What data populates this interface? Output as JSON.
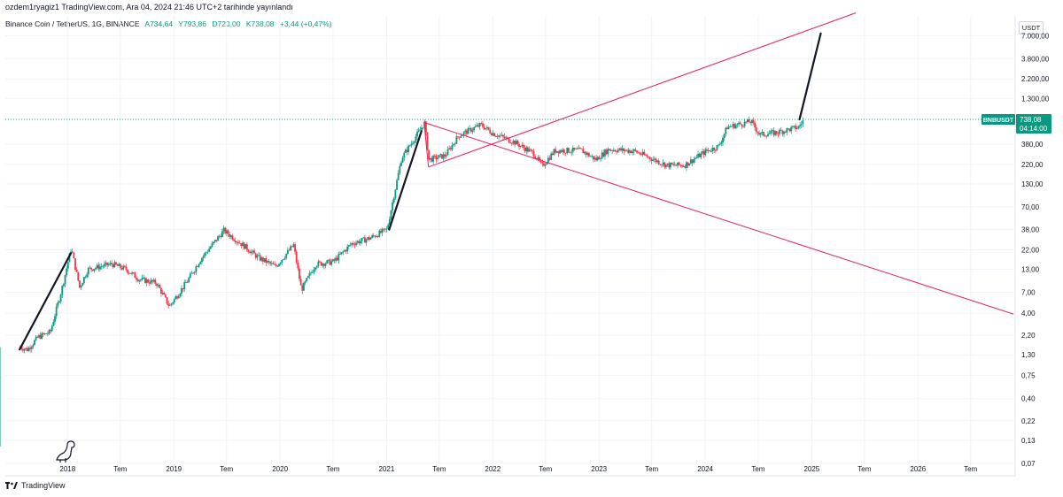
{
  "publish_note": "ozdem1ryagiz1 TradingView.com, Ara 04, 2024 21:46 UTC+2 tarihinde yayınlandı",
  "header": {
    "title": "Binance Coin / TetherUS, 1G, BINANCE",
    "open": "A734,64",
    "high": "Y793,86",
    "low": "D720,00",
    "close": "K738,08",
    "change": "+3,44 (+0,47%)"
  },
  "currency_badge": "USDT",
  "last_price": {
    "symbol": "BNBUSDT",
    "value": "738,08",
    "countdown": "04:14:00"
  },
  "brand": "TradingView",
  "colors": {
    "up": "#089981",
    "down": "#f23645",
    "trendline": "#e91e63",
    "projection": "#131722",
    "price_line": "#089981"
  },
  "chart_data": {
    "type": "candlestick",
    "y_scale": "log",
    "ylim": [
      0.05,
      12000
    ],
    "y_ticks": [
      {
        "value": 7000,
        "label": "7.000,00"
      },
      {
        "value": 3800,
        "label": "3.800,00"
      },
      {
        "value": 2200,
        "label": "2.200,00"
      },
      {
        "value": 1300,
        "label": "1.300,00"
      },
      {
        "value": 380,
        "label": "380,00"
      },
      {
        "value": 220,
        "label": "220,00"
      },
      {
        "value": 130,
        "label": "130,00"
      },
      {
        "value": 70,
        "label": "70,00"
      },
      {
        "value": 38,
        "label": "38,00"
      },
      {
        "value": 22,
        "label": "22,00"
      },
      {
        "value": 13,
        "label": "13,00"
      },
      {
        "value": 7,
        "label": "7,00"
      },
      {
        "value": 4,
        "label": "4,00"
      },
      {
        "value": 2.2,
        "label": "2,20"
      },
      {
        "value": 1.3,
        "label": "1,30"
      },
      {
        "value": 0.75,
        "label": "0,75"
      },
      {
        "value": 0.4,
        "label": "0,40"
      },
      {
        "value": 0.22,
        "label": "0,22"
      },
      {
        "value": 0.13,
        "label": "0,13"
      },
      {
        "value": 0.07,
        "label": "0,07"
      }
    ],
    "x_ticks": [
      {
        "date": "2018-01-01",
        "label": "2018"
      },
      {
        "date": "2018-07-01",
        "label": "Tem"
      },
      {
        "date": "2019-01-01",
        "label": "2019"
      },
      {
        "date": "2019-07-01",
        "label": "Tem"
      },
      {
        "date": "2020-01-01",
        "label": "2020"
      },
      {
        "date": "2020-07-01",
        "label": "Tem"
      },
      {
        "date": "2021-01-01",
        "label": "2021"
      },
      {
        "date": "2021-07-01",
        "label": "Tem"
      },
      {
        "date": "2022-01-01",
        "label": "2022"
      },
      {
        "date": "2022-07-01",
        "label": "Tem"
      },
      {
        "date": "2023-01-01",
        "label": "2023"
      },
      {
        "date": "2023-07-01",
        "label": "Tem"
      },
      {
        "date": "2024-01-01",
        "label": "2024"
      },
      {
        "date": "2024-07-01",
        "label": "Tem"
      },
      {
        "date": "2025-01-01",
        "label": "2025"
      },
      {
        "date": "2025-07-01",
        "label": "Tem"
      },
      {
        "date": "2026-01-01",
        "label": "2026"
      },
      {
        "date": "2026-07-01",
        "label": "Tem"
      }
    ],
    "xlim": [
      "2017-06-01",
      "2026-12-01"
    ],
    "price_series": [
      [
        "2017-07-14",
        0.11
      ],
      [
        "2017-07-20",
        1.6
      ],
      [
        "2017-08-15",
        1.5
      ],
      [
        "2017-09-20",
        2.1
      ],
      [
        "2017-11-01",
        2.4
      ],
      [
        "2017-12-10",
        7.5
      ],
      [
        "2018-01-12",
        23
      ],
      [
        "2018-02-10",
        8
      ],
      [
        "2018-03-10",
        13
      ],
      [
        "2018-04-20",
        14
      ],
      [
        "2018-06-01",
        15
      ],
      [
        "2018-07-20",
        13
      ],
      [
        "2018-09-01",
        10
      ],
      [
        "2018-11-01",
        9
      ],
      [
        "2018-12-15",
        4.8
      ],
      [
        "2019-02-15",
        9.5
      ],
      [
        "2019-04-01",
        17
      ],
      [
        "2019-06-20",
        37
      ],
      [
        "2019-07-15",
        32
      ],
      [
        "2019-09-01",
        24
      ],
      [
        "2019-10-15",
        18
      ],
      [
        "2019-12-15",
        14
      ],
      [
        "2020-02-15",
        25
      ],
      [
        "2020-03-13",
        7.5
      ],
      [
        "2020-05-01",
        15
      ],
      [
        "2020-07-01",
        16
      ],
      [
        "2020-09-01",
        26
      ],
      [
        "2020-11-01",
        30
      ],
      [
        "2021-01-01",
        38
      ],
      [
        "2021-02-20",
        260
      ],
      [
        "2021-05-10",
        670
      ],
      [
        "2021-05-25",
        250
      ],
      [
        "2021-07-20",
        280
      ],
      [
        "2021-09-05",
        480
      ],
      [
        "2021-11-20",
        640
      ],
      [
        "2021-12-30",
        510
      ],
      [
        "2022-03-15",
        400
      ],
      [
        "2022-05-20",
        295
      ],
      [
        "2022-06-18",
        210
      ],
      [
        "2022-08-01",
        320
      ],
      [
        "2022-11-01",
        320
      ],
      [
        "2022-12-20",
        250
      ],
      [
        "2023-02-01",
        330
      ],
      [
        "2023-05-01",
        315
      ],
      [
        "2023-08-20",
        215
      ],
      [
        "2023-10-20",
        215
      ],
      [
        "2023-12-31",
        310
      ],
      [
        "2024-02-15",
        360
      ],
      [
        "2024-03-15",
        600
      ],
      [
        "2024-06-05",
        700
      ],
      [
        "2024-07-05",
        490
      ],
      [
        "2024-09-01",
        520
      ],
      [
        "2024-11-15",
        600
      ],
      [
        "2024-12-04",
        738
      ]
    ],
    "drawings": {
      "projection_lines": [
        {
          "from": [
            "2017-07-20",
            1.5
          ],
          "to": [
            "2018-01-12",
            20
          ]
        },
        {
          "from": [
            "2021-01-10",
            38
          ],
          "to": [
            "2021-05-01",
            540
          ]
        },
        {
          "from": [
            "2024-11-20",
            738
          ],
          "to": [
            "2025-02-01",
            7500
          ]
        }
      ],
      "trend_lines": [
        {
          "from": [
            "2021-05-10",
            680
          ],
          "to": [
            "2026-11-25",
            3.9
          ]
        },
        {
          "from": [
            "2021-05-25",
            205
          ],
          "to": [
            "2025-06-01",
            13000
          ]
        },
        {
          "from": [
            "2021-05-10",
            680
          ],
          "to": [
            "2021-05-25",
            205
          ]
        }
      ]
    },
    "last_value": 738.08
  }
}
